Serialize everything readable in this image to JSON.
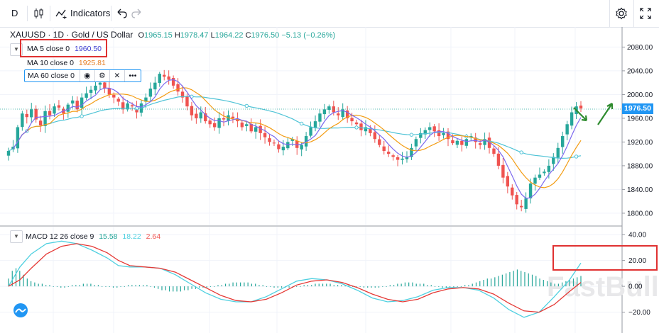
{
  "toolbar": {
    "interval": "D",
    "indicators_label": "Indicators"
  },
  "symbol": {
    "title": "XAUUSD · 1D · Gold / US Dollar",
    "ohlc": [
      {
        "key": "O",
        "value": "1965.15"
      },
      {
        "key": "H",
        "value": "1978.47"
      },
      {
        "key": "L",
        "value": "1964.22"
      },
      {
        "key": "C",
        "value": "1976.50"
      }
    ],
    "change": "−5.13 (−0.26%)"
  },
  "ma_legend": [
    {
      "label": "MA 5 close 0",
      "value": "1960.50",
      "color": "#3f3fd0"
    },
    {
      "label": "MA 10 close 0",
      "value": "1925.81",
      "color": "#f39c12"
    },
    {
      "label": "MA 60 close 0",
      "value": "",
      "color": "#4fc3d6"
    }
  ],
  "macd_legend": {
    "label": "MACD 12 26 close 9",
    "values": [
      {
        "value": "15.58",
        "color": "#26a69a"
      },
      {
        "value": "18.22",
        "color": "#4fd0e0"
      },
      {
        "value": "2.64",
        "color": "#ef5350"
      }
    ]
  },
  "last_price_tag": "1976.50",
  "watermark": "FastBull",
  "colors": {
    "up": "#26a69a",
    "down": "#ef5350",
    "ma5": "#7b68ee",
    "ma10": "#f39c12",
    "ma60": "#4fc3d6",
    "macd": "#4fd0e0",
    "signal": "#e53935",
    "annotation_arrow": "#2e8b2e",
    "highlight": "#e03131"
  },
  "chart_data": [
    {
      "type": "candlestick",
      "title": "XAUUSD · 1D · Gold / US Dollar",
      "y_ticks": [
        1800,
        1840,
        1880,
        1920,
        1960,
        2000,
        2040,
        2080
      ],
      "y_tick_labels": [
        "1800.00",
        "1840.00",
        "1880.00",
        "1920.00",
        "1960.00",
        "2000.00",
        "2040.00",
        "2080.00"
      ],
      "ylim": [
        1782,
        2102
      ],
      "grid": true,
      "series": [
        {
          "name": "Candles",
          "closes": [
            1905,
            1912,
            1945,
            1968,
            1962,
            1975,
            1958,
            1948,
            1972,
            1965,
            1980,
            1978,
            1968,
            1983,
            1990,
            1975,
            1995,
            2002,
            2008,
            2015,
            2020,
            2010,
            2000,
            1995,
            1988,
            1975,
            1985,
            1980,
            1970,
            1985,
            1995,
            2010,
            2020,
            2035,
            2030,
            2025,
            2015,
            2005,
            1995,
            1980,
            1965,
            1960,
            1970,
            1955,
            1950,
            1945,
            1960,
            1958,
            1965,
            1960,
            1955,
            1945,
            1950,
            1938,
            1945,
            1935,
            1928,
            1920,
            1918,
            1908,
            1912,
            1920,
            1925,
            1910,
            1915,
            1930,
            1945,
            1955,
            1968,
            1975,
            1980,
            1970,
            1965,
            1975,
            1960,
            1955,
            1950,
            1940,
            1945,
            1935,
            1925,
            1915,
            1905,
            1900,
            1895,
            1890,
            1892,
            1895,
            1910,
            1925,
            1935,
            1940,
            1945,
            1938,
            1930,
            1935,
            1925,
            1918,
            1922,
            1915,
            1925,
            1930,
            1920,
            1915,
            1925,
            1910,
            1900,
            1880,
            1860,
            1845,
            1830,
            1815,
            1810,
            1825,
            1850,
            1860,
            1865,
            1870,
            1880,
            1895,
            1910,
            1930,
            1950,
            1970,
            1980,
            1976.5
          ]
        },
        {
          "name": "MA 5"
        },
        {
          "name": "MA 10"
        },
        {
          "name": "MA 60"
        }
      ]
    },
    {
      "type": "bar+line",
      "title": "MACD 12 26 close 9",
      "y_ticks": [
        -20,
        0,
        20,
        40
      ],
      "y_tick_labels": [
        "−20.00",
        "0.00",
        "20.00",
        "40.00"
      ],
      "ylim": [
        -35,
        45
      ],
      "grid": true,
      "series": [
        {
          "name": "MACD",
          "points": [
            [
              0,
              0
            ],
            [
              3,
              15
            ],
            [
              6,
              25
            ],
            [
              10,
              33
            ],
            [
              14,
              35
            ],
            [
              18,
              33
            ],
            [
              22,
              28
            ],
            [
              26,
              22
            ],
            [
              29,
              16
            ],
            [
              32,
              15
            ],
            [
              36,
              15
            ],
            [
              40,
              14
            ],
            [
              44,
              9
            ],
            [
              48,
              2
            ],
            [
              52,
              -5
            ],
            [
              56,
              -10
            ],
            [
              60,
              -12
            ],
            [
              64,
              -12
            ],
            [
              68,
              -8
            ],
            [
              72,
              -2
            ],
            [
              76,
              4
            ],
            [
              80,
              6
            ],
            [
              84,
              5
            ],
            [
              88,
              2
            ],
            [
              92,
              -3
            ],
            [
              96,
              -9
            ],
            [
              100,
              -12
            ],
            [
              104,
              -11
            ],
            [
              108,
              -8
            ],
            [
              112,
              -3
            ],
            [
              116,
              -1
            ],
            [
              120,
              -1
            ],
            [
              124,
              -3
            ],
            [
              128,
              -9
            ],
            [
              132,
              -18
            ],
            [
              136,
              -24
            ],
            [
              140,
              -20
            ],
            [
              144,
              -8
            ],
            [
              148,
              5
            ],
            [
              151,
              18
            ]
          ]
        },
        {
          "name": "Signal",
          "points": [
            [
              0,
              0
            ],
            [
              3,
              5
            ],
            [
              6,
              14
            ],
            [
              10,
              25
            ],
            [
              14,
              31
            ],
            [
              18,
              33
            ],
            [
              22,
              31
            ],
            [
              26,
              26
            ],
            [
              29,
              20
            ],
            [
              32,
              16
            ],
            [
              36,
              15
            ],
            [
              40,
              14
            ],
            [
              44,
              11
            ],
            [
              48,
              5
            ],
            [
              52,
              -1
            ],
            [
              56,
              -7
            ],
            [
              60,
              -11
            ],
            [
              64,
              -12
            ],
            [
              68,
              -10
            ],
            [
              72,
              -5
            ],
            [
              76,
              1
            ],
            [
              80,
              4
            ],
            [
              84,
              5
            ],
            [
              88,
              3
            ],
            [
              92,
              -1
            ],
            [
              96,
              -6
            ],
            [
              100,
              -10
            ],
            [
              104,
              -12
            ],
            [
              108,
              -10
            ],
            [
              112,
              -5
            ],
            [
              116,
              -2
            ],
            [
              120,
              -1
            ],
            [
              124,
              -2
            ],
            [
              128,
              -6
            ],
            [
              132,
              -13
            ],
            [
              136,
              -19
            ],
            [
              140,
              -20
            ],
            [
              144,
              -14
            ],
            [
              148,
              -4
            ],
            [
              151,
              3
            ]
          ]
        },
        {
          "name": "Histogram",
          "values": [
            6,
            12,
            14,
            12,
            9,
            6,
            4,
            3,
            2,
            2,
            1,
            1,
            0,
            0,
            -1,
            -1,
            0,
            1,
            1,
            1,
            2,
            2,
            2,
            1,
            1,
            0,
            0,
            0,
            -1,
            -1,
            0,
            0,
            1,
            1,
            1,
            1,
            1,
            1,
            0,
            -1,
            -2,
            -3,
            -3,
            -4,
            -4,
            -4,
            -4,
            -3,
            -3,
            -2,
            -2,
            -1,
            -1,
            -1,
            0,
            0,
            1,
            1,
            2,
            2,
            3,
            3,
            3,
            3,
            3,
            2,
            2,
            1,
            1,
            0,
            0,
            -1,
            -1,
            -1,
            -1,
            -1,
            -1,
            0,
            0,
            1,
            1,
            1,
            2,
            2,
            2,
            2,
            2,
            1,
            1,
            1,
            1,
            1,
            0,
            0,
            0,
            -1,
            -1,
            -1,
            -1,
            -1,
            0,
            0,
            1,
            1,
            2,
            2,
            3,
            3,
            3,
            2,
            2,
            2,
            1,
            1,
            0,
            0,
            -1,
            -1,
            -1,
            -1,
            0,
            0,
            1,
            1,
            2,
            3,
            4,
            5,
            6,
            6,
            7,
            8,
            9,
            10,
            11,
            12,
            13,
            12,
            11,
            10,
            9,
            8,
            6,
            5,
            4,
            3,
            2,
            2,
            3,
            4,
            5,
            6,
            7,
            8
          ]
        }
      ]
    }
  ]
}
